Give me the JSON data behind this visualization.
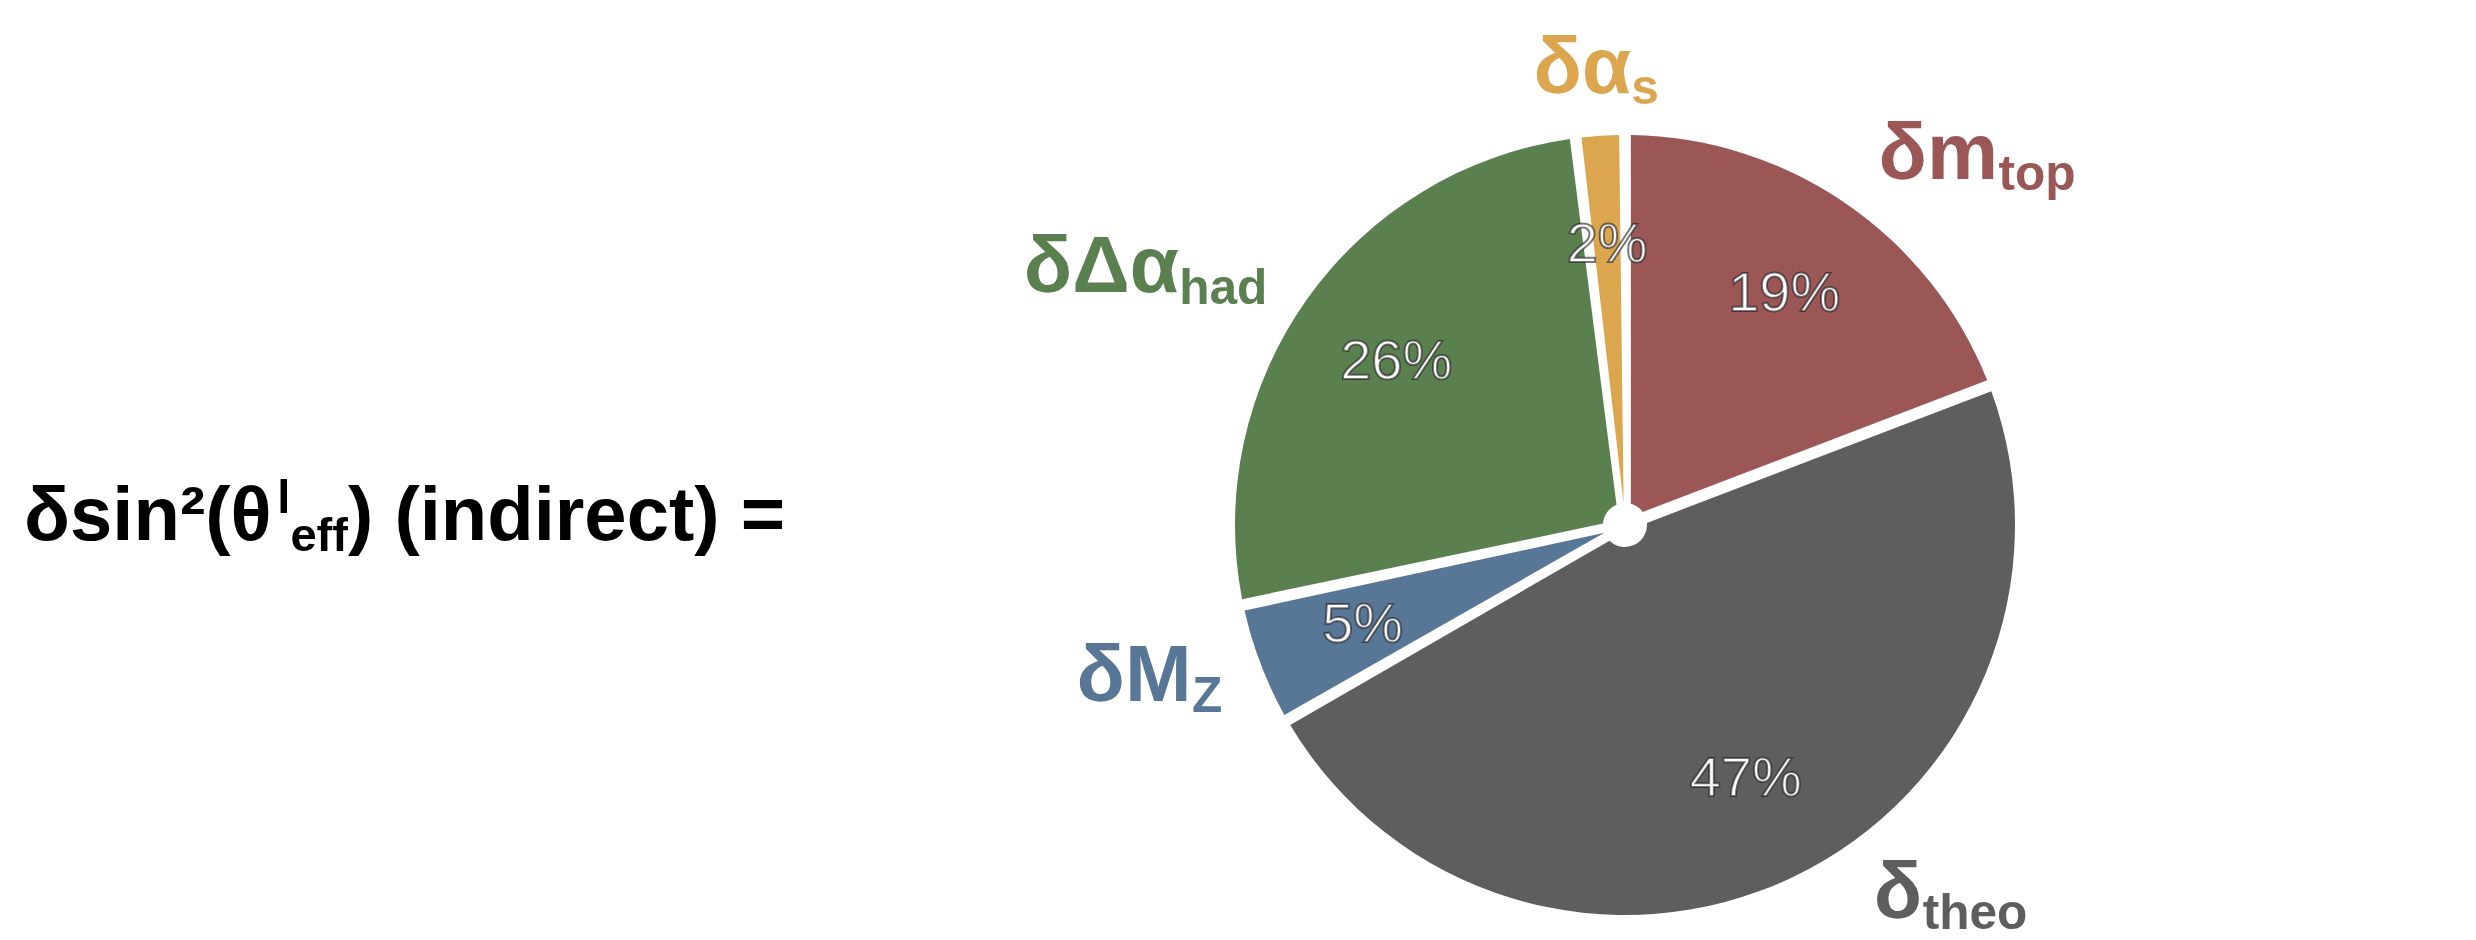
{
  "chart_data": {
    "type": "pie",
    "title": "δsin²(θ$^{l}$$_{eff}$) (indirect) =",
    "categories": [
      "δm$_{top}$",
      "δ$_{theo}$",
      "δM$_{Z}$",
      "δΔα$_{had}$",
      "δα$_{s}$"
    ],
    "values": [
      19,
      47,
      5,
      26,
      2
    ],
    "colors": [
      "#9b5656",
      "#5e5e5e",
      "#587796",
      "#5b804f",
      "#dca64f"
    ],
    "value_labels": [
      "19%",
      "47%",
      "5%",
      "26%",
      "2%"
    ]
  }
}
